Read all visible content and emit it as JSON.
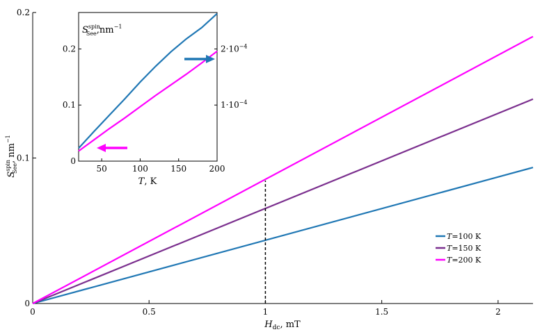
{
  "chart_data": [
    {
      "type": "line",
      "panel": "main",
      "xlabel": "H_dc, mT",
      "xlabel_main": "H",
      "xlabel_sub": "dc",
      "xlabel_unit": ", mT",
      "ylabel": "S_See^spin, nm^-1",
      "ylabel_main": "S",
      "ylabel_sub": "See",
      "ylabel_sup": "spin",
      "ylabel_unit": ", nm",
      "ylabel_exp": "−1",
      "xlim": [
        0,
        2.15
      ],
      "ylim": [
        0,
        0.2
      ],
      "xticks": [
        0,
        0.5,
        1,
        1.5,
        2
      ],
      "xtick_labels": [
        "0",
        "0.5",
        "1",
        "1.5",
        "2"
      ],
      "yticks": [
        0,
        0.1,
        0.2
      ],
      "ytick_labels": [
        "0",
        "0.1",
        "0.2"
      ],
      "legend": "center-right",
      "series": [
        {
          "name_T": "T",
          "name_rest": "=100 K",
          "color": "#1f77b4",
          "x": [
            0,
            2.15
          ],
          "y": [
            0,
            0.0935
          ]
        },
        {
          "name_T": "T",
          "name_rest": "=150 K",
          "color": "#7b2f8e",
          "x": [
            0,
            2.15
          ],
          "y": [
            0,
            0.1405
          ]
        },
        {
          "name_T": "T",
          "name_rest": "=200 K",
          "color": "#ff00ff",
          "x": [
            0,
            2.15
          ],
          "y": [
            0,
            0.1835
          ]
        }
      ],
      "annotations": [
        {
          "type": "dashed-vertical",
          "x": 1,
          "y_from": 0,
          "y_to": 0.0845
        }
      ]
    },
    {
      "type": "line",
      "panel": "inset",
      "xlabel": "T, K",
      "xlabel_main": "T",
      "xlabel_unit": ", K",
      "ylabel": "S_See^spin, nm^-1",
      "ylabel_main": "S",
      "ylabel_sub": "See",
      "ylabel_sup": "spin",
      "ylabel_unit": ",nm",
      "ylabel_exp": "−1",
      "xlim": [
        20,
        200
      ],
      "ylim": [
        0,
        0.265
      ],
      "right_ylim": [
        0,
        0.000265
      ],
      "xticks": [
        50,
        100,
        150,
        200
      ],
      "xtick_labels": [
        "50",
        "100",
        "150",
        "200"
      ],
      "yticks": [
        0,
        0.1,
        0.2
      ],
      "ytick_labels": [
        "0",
        "0.1",
        "0.2"
      ],
      "right_yticks": [
        0.0001,
        0.0002
      ],
      "right_ytick_labels": [
        {
          "mant": "1·10",
          "exp": "−4"
        },
        {
          "mant": "2·10",
          "exp": "−4"
        }
      ],
      "series": [
        {
          "axis": "right",
          "color": "#1f77b4",
          "x": [
            20,
            40,
            60,
            80,
            100,
            120,
            140,
            160,
            180,
            200
          ],
          "y": [
            2.3e-05,
            5.3e-05,
            8.2e-05,
            0.000111,
            0.000141,
            0.000169,
            0.000195,
            0.000218,
            0.000238,
            0.000263
          ]
        },
        {
          "axis": "left",
          "color": "#ff00ff",
          "x": [
            20,
            40,
            60,
            80,
            100,
            120,
            140,
            160,
            180,
            200
          ],
          "y": [
            0.018,
            0.038,
            0.058,
            0.077,
            0.097,
            0.117,
            0.136,
            0.155,
            0.175,
            0.196
          ]
        }
      ]
    }
  ]
}
